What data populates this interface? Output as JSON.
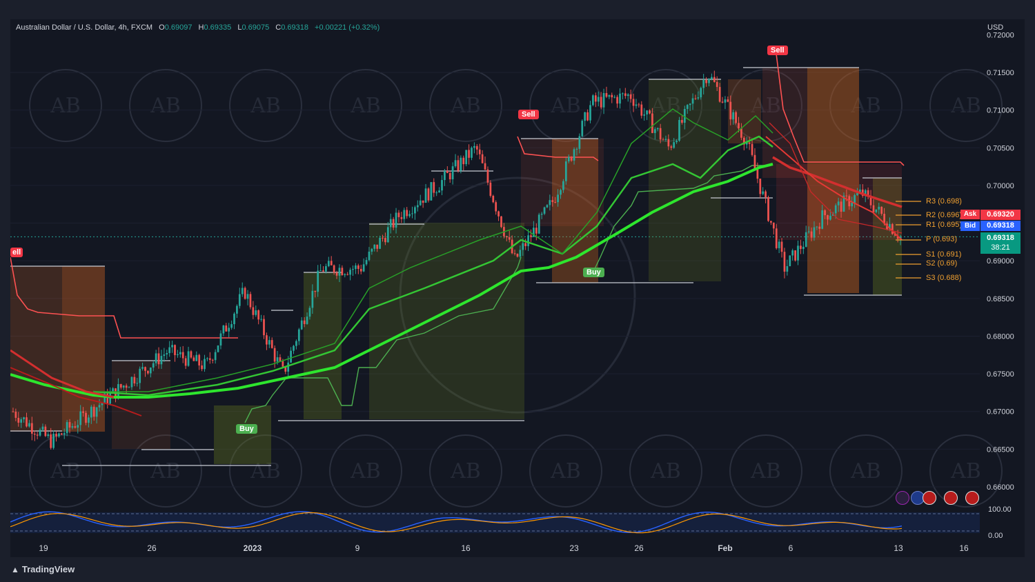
{
  "header": {
    "symbol": "Australian Dollar / U.S. Dollar, 4h, FXCM",
    "open_label": "O",
    "open": "0.69097",
    "high_label": "H",
    "high": "0.69335",
    "low_label": "L",
    "low": "0.69075",
    "close_label": "C",
    "close": "0.69318",
    "change": "+0.00221 (+0.32%)"
  },
  "currency": "USD",
  "brand": "TradingView",
  "signals": {
    "sell": "Sell",
    "buy": "Buy",
    "sell_cut": "ell"
  },
  "price_tags": {
    "ask_label": "Ask",
    "ask": "0.69320",
    "bid_label": "Bid",
    "bid": "0.69318",
    "last": "0.69318",
    "countdown": "38:21"
  },
  "pivots": {
    "r3": "R3 (0.698)",
    "r2": "R2 (0.696)",
    "r1": "R1 (0.695)",
    "p": "P (0.693)",
    "s1": "S1 (0.691)",
    "s2": "S2 (0.69)",
    "s3": "S3 (0.688)"
  },
  "colors": {
    "up": "#26a69a",
    "down": "#ef5350",
    "ema_green": "#2ee62e",
    "ema_red": "#d32f2f",
    "osc_blue": "#2962ff",
    "osc_orange": "#ff9800",
    "sell_badge": "#f23645",
    "buy_badge": "#4caf50"
  },
  "chart_data": {
    "type": "candlestick",
    "title": "Australian Dollar / U.S. Dollar, 4h, FXCM",
    "x_tick_labels": [
      "19",
      "26",
      "2023",
      "9",
      "16",
      "23",
      "26",
      "Feb",
      "6",
      "13",
      "16"
    ],
    "y_tick_labels": [
      "0.72000",
      "0.71500",
      "0.71000",
      "0.70500",
      "0.70000",
      "0.69500",
      "0.69000",
      "0.68500",
      "0.68000",
      "0.67500",
      "0.67000",
      "0.66500",
      "0.66000"
    ],
    "ylim": [
      0.656,
      0.7205
    ],
    "approx_close_path": [
      {
        "x": "19",
        "y": 0.67
      },
      {
        "x": "21",
        "y": 0.666
      },
      {
        "x": "24",
        "y": 0.67
      },
      {
        "x": "26",
        "y": 0.674
      },
      {
        "x": "29",
        "y": 0.678
      },
      {
        "x": "2023",
        "y": 0.676
      },
      {
        "x": "5",
        "y": 0.686
      },
      {
        "x": "7",
        "y": 0.675
      },
      {
        "x": "9",
        "y": 0.689
      },
      {
        "x": "12",
        "y": 0.689
      },
      {
        "x": "16",
        "y": 0.696
      },
      {
        "x": "18",
        "y": 0.7
      },
      {
        "x": "19b",
        "y": 0.705
      },
      {
        "x": "20",
        "y": 0.69
      },
      {
        "x": "23",
        "y": 0.698
      },
      {
        "x": "24",
        "y": 0.711
      },
      {
        "x": "26",
        "y": 0.712
      },
      {
        "x": "31",
        "y": 0.705
      },
      {
        "x": "Feb",
        "y": 0.715
      },
      {
        "x": "3",
        "y": 0.706
      },
      {
        "x": "6",
        "y": 0.689
      },
      {
        "x": "8",
        "y": 0.696
      },
      {
        "x": "10",
        "y": 0.699
      },
      {
        "x": "13",
        "y": 0.6932
      }
    ],
    "oscillator": {
      "y_tick_labels": [
        "100.00",
        "0.00"
      ]
    }
  }
}
